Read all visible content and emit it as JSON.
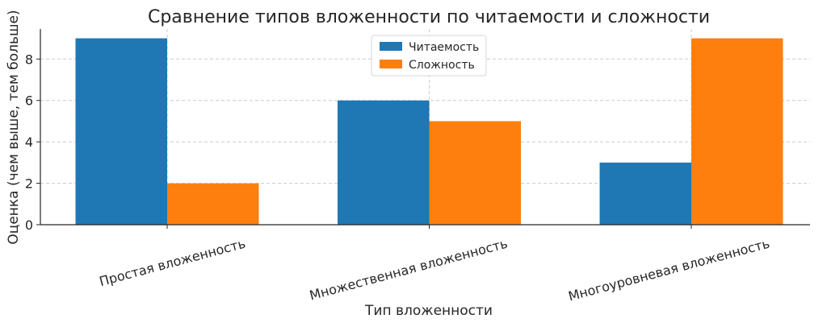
{
  "chart_data": {
    "type": "bar",
    "title": "Сравнение типов вложенности по читаемости и сложности",
    "xlabel": "Тип вложенности",
    "ylabel": "Оценка (чем выше, тем больше)",
    "categories": [
      "Простая вложенность",
      "Множественная вложенность",
      "Многоуровневая вложенность"
    ],
    "series": [
      {
        "name": "Читаемость",
        "values": [
          9,
          6,
          3
        ],
        "color": "#1f77b4"
      },
      {
        "name": "Сложность",
        "values": [
          2,
          5,
          9
        ],
        "color": "#ff7f0e"
      }
    ],
    "ylim": [
      0,
      9.45
    ],
    "yticks": [
      0,
      2,
      4,
      6,
      8
    ],
    "grid": true,
    "legend_position": "top-center"
  }
}
